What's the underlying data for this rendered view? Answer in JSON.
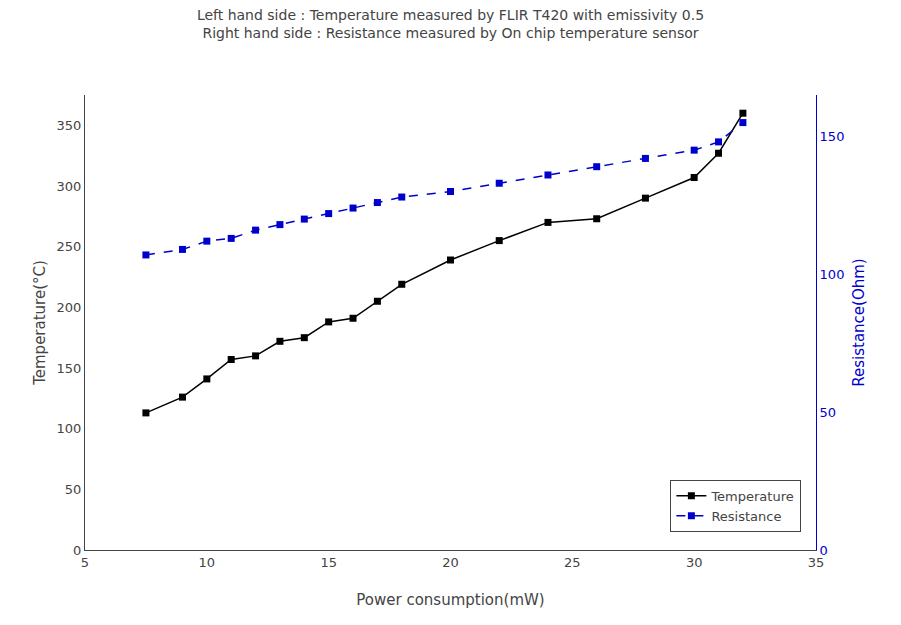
{
  "chart_data": {
    "type": "line",
    "title": "Left hand side : Temperature measured by FLIR T420 with emissivity 0.5\nRight hand side : Resistance measured by On chip temperature sensor",
    "xlabel": "Power consumption(mW)",
    "ylabel": "Temperature(°C)",
    "y2label": "Resistance(Ohm)",
    "x": [
      7.5,
      9,
      10,
      11,
      12,
      13,
      14,
      15,
      16,
      17,
      18,
      20,
      22,
      24,
      26,
      28,
      30,
      31,
      32
    ],
    "series": [
      {
        "name": "Temperature",
        "color": "#000000",
        "marker": "square",
        "line_style": "solid",
        "values": [
          113,
          126,
          141,
          157,
          160,
          172,
          175,
          188,
          191,
          205,
          219,
          239,
          255,
          270,
          273,
          290,
          307,
          327,
          360
        ]
      },
      {
        "name": "Resistance",
        "color": "#0000cc",
        "marker": "square",
        "line_style": "dashed",
        "axis": "y2",
        "values": [
          107,
          109,
          112,
          113,
          116,
          118,
          120,
          122,
          124,
          126,
          128,
          130,
          133,
          136,
          139,
          142,
          145,
          148,
          155
        ]
      }
    ],
    "xlim": [
      5,
      35
    ],
    "xticks": [
      5,
      10,
      15,
      20,
      25,
      30,
      35
    ],
    "ylim": [
      0,
      375
    ],
    "yticks": [
      0,
      50,
      100,
      150,
      200,
      250,
      300,
      350
    ],
    "y2lim": [
      0,
      165
    ],
    "y2ticks": [
      0,
      50,
      100,
      150
    ],
    "grid": false,
    "legend": "lower right"
  }
}
